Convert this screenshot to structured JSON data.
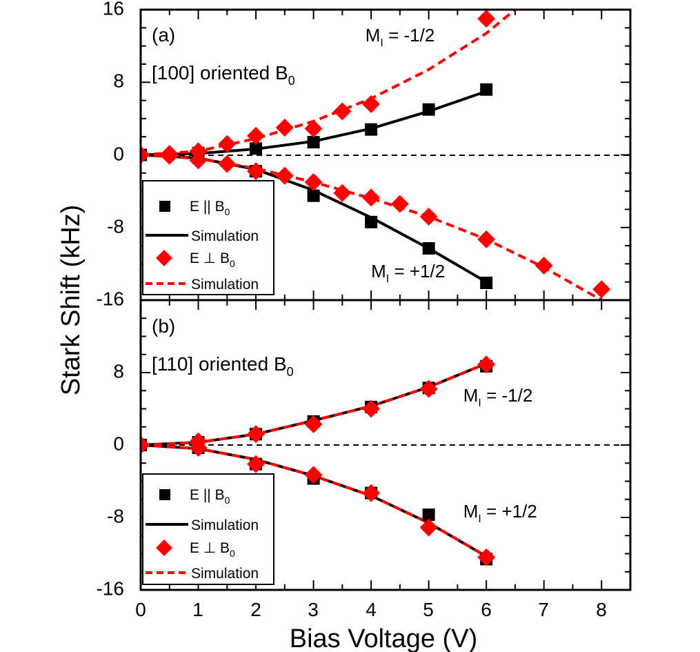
{
  "chart_data": [
    {
      "type": "scatter",
      "panel_label": "(a)",
      "orientation": "[100] oriented B",
      "orientation_sub": "0",
      "xlabel": "Bias Voltage (V)",
      "ylabel": "Stark Shift (kHz)",
      "xlim": [
        0,
        8.5
      ],
      "ylim": [
        -16,
        16
      ],
      "yticks": [
        "-16",
        "-8",
        "0",
        "8",
        "16"
      ],
      "xticks": [],
      "annotations": [
        {
          "main": "M",
          "sub": "I",
          "rest": " = -1/2",
          "x": 3.9,
          "y": 12.5
        },
        {
          "main": "M",
          "sub": "I",
          "rest": " = +1/2",
          "x": 4.0,
          "y": -13.5
        }
      ],
      "legend": [
        {
          "label": "E || B",
          "sub": "0",
          "kind": "square"
        },
        {
          "label": "Simulation",
          "sub": "",
          "kind": "solid"
        },
        {
          "label": "E ⊥ B",
          "sub": "0",
          "kind": "diamond"
        },
        {
          "label": "Simulation",
          "sub": "",
          "kind": "dash"
        }
      ],
      "series": [
        {
          "name": "E || B0, MI = -1/2",
          "marker": "square",
          "color": "#000000",
          "x": [
            0,
            1,
            2,
            3,
            4,
            5,
            6
          ],
          "y": [
            0,
            0.2,
            0.7,
            1.4,
            2.8,
            5.0,
            7.2
          ]
        },
        {
          "name": "E || B0, MI = +1/2",
          "marker": "square",
          "color": "#000000",
          "x": [
            0,
            1,
            2,
            3,
            4,
            5,
            6
          ],
          "y": [
            0,
            -0.3,
            -1.8,
            -4.5,
            -7.4,
            -10.3,
            -14.1
          ]
        },
        {
          "name": "E ⊥ B0, MI = -1/2",
          "marker": "diamond",
          "color": "#ff0000",
          "x": [
            0,
            0.5,
            1,
            1.5,
            2,
            2.5,
            3,
            3.5,
            4,
            6
          ],
          "y": [
            0,
            0.1,
            0.4,
            1.2,
            2.1,
            3.0,
            2.9,
            4.8,
            5.6,
            15.0
          ]
        },
        {
          "name": "E ⊥ B0, MI = +1/2",
          "marker": "diamond",
          "color": "#ff0000",
          "x": [
            0,
            0.5,
            1,
            1.5,
            2,
            2.5,
            3,
            3.5,
            4,
            4.5,
            5,
            6,
            7,
            8
          ],
          "y": [
            0,
            -0.1,
            -0.6,
            -1.0,
            -1.8,
            -2.3,
            -3.0,
            -4.2,
            -4.7,
            -5.4,
            -6.8,
            -9.3,
            -12.2,
            -14.8
          ]
        },
        {
          "name": "Simulation (E || B0), MI = -1/2",
          "line": "solid",
          "color": "#000000",
          "x": [
            0,
            1,
            2,
            3,
            4,
            5,
            6
          ],
          "y": [
            0,
            0.15,
            0.65,
            1.5,
            2.9,
            4.8,
            7.0
          ]
        },
        {
          "name": "Simulation (E || B0), MI = +1/2",
          "line": "solid",
          "color": "#000000",
          "x": [
            0,
            1,
            2,
            3,
            4,
            5,
            6
          ],
          "y": [
            0,
            -0.35,
            -1.6,
            -3.9,
            -6.9,
            -10.3,
            -14.0
          ]
        },
        {
          "name": "Simulation (E ⊥ B0), MI = -1/2",
          "line": "dash",
          "color": "#ff0000",
          "x": [
            0,
            1,
            2,
            3,
            4,
            5,
            6,
            6.5
          ],
          "y": [
            0,
            0.4,
            1.8,
            3.7,
            6.2,
            9.4,
            13.4,
            16.0
          ]
        },
        {
          "name": "Simulation (E ⊥ B0), MI = +1/2",
          "line": "dash",
          "color": "#ff0000",
          "x": [
            0,
            1,
            2,
            3,
            4,
            5,
            6,
            7,
            8
          ],
          "y": [
            0,
            -0.4,
            -1.5,
            -3.0,
            -4.8,
            -6.8,
            -9.3,
            -12.4,
            -16.0
          ]
        }
      ]
    },
    {
      "type": "scatter",
      "panel_label": "(b)",
      "orientation": "[110] oriented B",
      "orientation_sub": "0",
      "xlabel": "Bias Voltage (V)",
      "ylabel": "Stark Shift (kHz)",
      "xlim": [
        0,
        8.5
      ],
      "ylim": [
        -16,
        16
      ],
      "yticks": [
        "-16",
        "-8",
        "0",
        "8",
        ""
      ],
      "xticks": [
        "0",
        "1",
        "2",
        "3",
        "4",
        "5",
        "6",
        "7",
        "8"
      ],
      "annotations": [
        {
          "main": "M",
          "sub": "I",
          "rest": " = -1/2",
          "x": 5.6,
          "y": 4.8
        },
        {
          "main": "M",
          "sub": "I",
          "rest": " = +1/2",
          "x": 5.6,
          "y": -8.0
        }
      ],
      "legend": [
        {
          "label": "E || B",
          "sub": "0",
          "kind": "square"
        },
        {
          "label": "Simulation",
          "sub": "",
          "kind": "solid"
        },
        {
          "label": "E ⊥ B",
          "sub": "0",
          "kind": "diamond"
        },
        {
          "label": "Simulation",
          "sub": "",
          "kind": "dash"
        }
      ],
      "series": [
        {
          "name": "E || B0, MI = -1/2",
          "marker": "square",
          "color": "#000000",
          "x": [
            0,
            1,
            2,
            3,
            4,
            5,
            6
          ],
          "y": [
            0,
            0.3,
            1.2,
            2.6,
            4.2,
            6.3,
            8.7
          ]
        },
        {
          "name": "E || B0, MI = +1/2",
          "marker": "square",
          "color": "#000000",
          "x": [
            0,
            1,
            2,
            3,
            4,
            5,
            6
          ],
          "y": [
            0,
            -0.3,
            -2.1,
            -3.7,
            -5.3,
            -7.7,
            -12.6
          ]
        },
        {
          "name": "E ⊥ B0, MI = -1/2",
          "marker": "diamond",
          "color": "#ff0000",
          "x": [
            0,
            1,
            2,
            3,
            4,
            5,
            6
          ],
          "y": [
            0,
            0.4,
            1.2,
            2.3,
            4.0,
            6.2,
            8.9
          ]
        },
        {
          "name": "E ⊥ B0, MI = +1/2",
          "marker": "diamond",
          "color": "#ff0000",
          "x": [
            0,
            1,
            2,
            3,
            4,
            5,
            6
          ],
          "y": [
            0,
            -0.3,
            -2.1,
            -3.3,
            -5.3,
            -9.1,
            -12.4
          ]
        },
        {
          "name": "Simulation (E || B0), MI = -1/2",
          "line": "solid",
          "color": "#000000",
          "x": [
            0,
            1,
            2,
            3,
            4,
            5,
            6
          ],
          "y": [
            0,
            0.3,
            1.2,
            2.7,
            4.3,
            6.4,
            9.0
          ]
        },
        {
          "name": "Simulation (E || B0), MI = +1/2",
          "line": "solid",
          "color": "#000000",
          "x": [
            0,
            1,
            2,
            3,
            4,
            5,
            6
          ],
          "y": [
            0,
            -0.4,
            -1.6,
            -3.4,
            -5.6,
            -8.6,
            -12.3
          ]
        },
        {
          "name": "Simulation (E ⊥ B0), MI = -1/2",
          "line": "dash",
          "color": "#ff0000",
          "x": [
            0,
            1,
            2,
            3,
            4,
            5,
            6
          ],
          "y": [
            0,
            0.3,
            1.2,
            2.7,
            4.3,
            6.4,
            9.0
          ]
        },
        {
          "name": "Simulation (E ⊥ B0), MI = +1/2",
          "line": "dash",
          "color": "#ff0000",
          "x": [
            0,
            1,
            2,
            3,
            4,
            5,
            6
          ],
          "y": [
            0,
            -0.4,
            -1.6,
            -3.4,
            -5.6,
            -8.6,
            -12.3
          ]
        }
      ]
    }
  ]
}
